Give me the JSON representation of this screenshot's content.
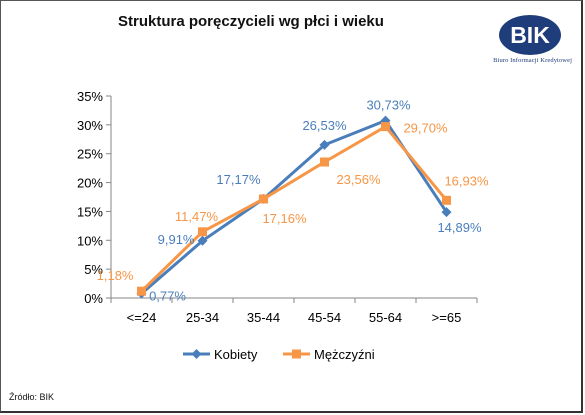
{
  "title": "Struktura poręczycieli wg płci i wieku",
  "logo": {
    "text": "BIK",
    "subtitle": "Biuro Informacji Kredytowej",
    "color": "#1f3d7a"
  },
  "source": "Źródło: BIK",
  "chart_data": {
    "type": "line",
    "categories": [
      "<=24",
      "25-34",
      "35-44",
      "45-54",
      "55-64",
      ">=65"
    ],
    "ylim": [
      0,
      35
    ],
    "yticks": [
      0,
      5,
      10,
      15,
      20,
      25,
      30,
      35
    ],
    "ytick_labels": [
      "0%",
      "5%",
      "10%",
      "15%",
      "20%",
      "25%",
      "30%",
      "35%"
    ],
    "grid": false,
    "legend_position": "bottom",
    "series": [
      {
        "name": "Kobiety",
        "values": [
          0.77,
          9.91,
          17.17,
          26.53,
          30.73,
          14.89
        ],
        "labels": [
          "0,77%",
          "9,91%",
          "17,17%",
          "26,53%",
          "30,73%",
          "14,89%"
        ],
        "color": "#4a7ebb",
        "marker": "diamond"
      },
      {
        "name": "Mężczyźni",
        "values": [
          1.18,
          11.47,
          17.16,
          23.56,
          29.7,
          16.93
        ],
        "labels": [
          "1,18%",
          "11,47%",
          "17,16%",
          "23,56%",
          "29,70%",
          "16,93%"
        ],
        "color": "#f79646",
        "marker": "square"
      }
    ]
  }
}
